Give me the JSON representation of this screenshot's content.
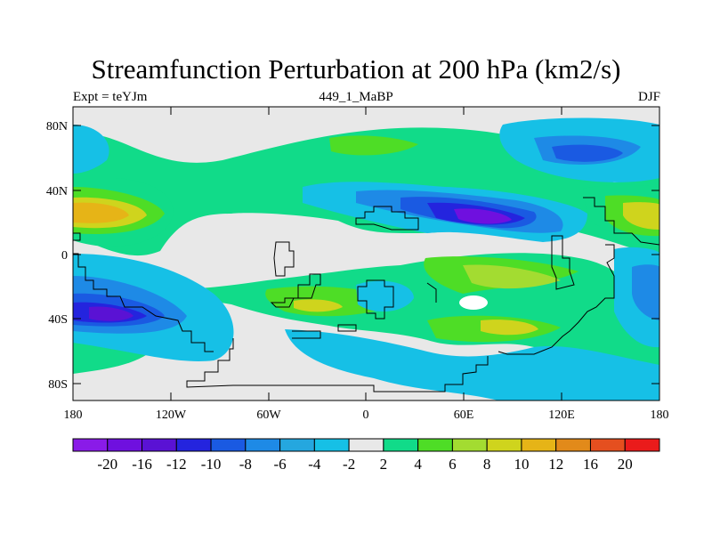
{
  "title": "Streamfunction Perturbation at 200 hPa (km2/s)",
  "subtitle_left": "Expt = teYJm",
  "subtitle_center": "449_1_MaBP",
  "subtitle_right": "DJF",
  "y_ticks": [
    "80N",
    "40N",
    "0",
    "40S",
    "80S"
  ],
  "x_ticks": [
    "180",
    "120W",
    "60W",
    "0",
    "60E",
    "120E",
    "180"
  ],
  "colorbar": {
    "colors": [
      "#8a1be8",
      "#6f10df",
      "#5a12d4",
      "#2424de",
      "#1a5ae2",
      "#1e8ae6",
      "#25a7df",
      "#16c0e6",
      "#e8e8e8",
      "#11db89",
      "#4edd26",
      "#a3dc31",
      "#cfd41d",
      "#e6b417",
      "#e28a1a",
      "#e54f1f",
      "#ea1b1b"
    ],
    "labels": [
      "-20",
      "-16",
      "-12",
      "-10",
      "-8",
      "-6",
      "-4",
      "-2",
      "2",
      "4",
      "6",
      "8",
      "10",
      "12",
      "16",
      "20"
    ]
  }
}
